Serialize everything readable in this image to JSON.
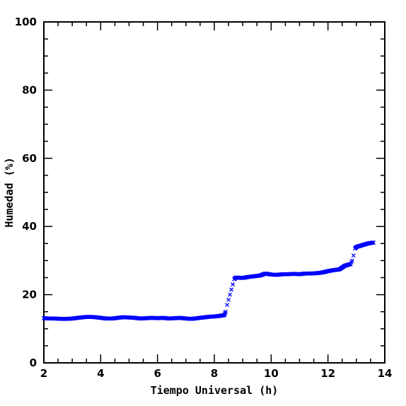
{
  "chart_data": {
    "type": "scatter",
    "xlabel": "Tiempo Universal (h)",
    "ylabel": "Humedad (%)",
    "xlim": [
      2,
      14
    ],
    "ylim": [
      0,
      100
    ],
    "x_ticks": [
      "2",
      "4",
      "6",
      "8",
      "10",
      "12",
      "14"
    ],
    "y_ticks": [
      "0",
      "20",
      "40",
      "60",
      "80",
      "100"
    ],
    "grid": false,
    "marker": "x",
    "color": "#0000ff",
    "series": [
      {
        "x": [
          2.0,
          2.2,
          2.4,
          2.6,
          2.8,
          3.0,
          3.2,
          3.4,
          3.6,
          3.8,
          4.0,
          4.2,
          4.4,
          4.6,
          4.8,
          5.0,
          5.2,
          5.4,
          5.6,
          5.8,
          6.0,
          6.2,
          6.4,
          6.6,
          6.8,
          7.0,
          7.2,
          7.4,
          7.6,
          7.8,
          8.0,
          8.2,
          8.35,
          8.4,
          8.45,
          8.5,
          8.55,
          8.6,
          8.65,
          8.7,
          8.75,
          8.8,
          9.0,
          9.2,
          9.4,
          9.6,
          9.8,
          10.0,
          10.2,
          10.4,
          10.6,
          10.8,
          11.0,
          11.2,
          11.4,
          11.6,
          11.8,
          12.0,
          12.2,
          12.4,
          12.6,
          12.8,
          12.85,
          12.9,
          12.95,
          13.0,
          13.2,
          13.4,
          13.6
        ],
        "y": [
          13.1,
          13.0,
          13.0,
          12.9,
          12.9,
          13.0,
          13.2,
          13.4,
          13.5,
          13.4,
          13.2,
          13.0,
          13.0,
          13.2,
          13.4,
          13.3,
          13.2,
          13.0,
          13.1,
          13.2,
          13.1,
          13.2,
          13.0,
          13.1,
          13.2,
          13.0,
          12.9,
          13.1,
          13.3,
          13.5,
          13.6,
          13.8,
          14.0,
          15.0,
          17.0,
          18.5,
          20.0,
          21.5,
          23.0,
          24.5,
          25.0,
          25.0,
          24.9,
          25.2,
          25.4,
          25.6,
          26.2,
          25.9,
          25.8,
          26.0,
          26.0,
          26.1,
          26.0,
          26.2,
          26.2,
          26.3,
          26.5,
          26.9,
          27.2,
          27.4,
          28.5,
          29.0,
          30.0,
          31.5,
          33.5,
          34.0,
          34.5,
          35.0,
          35.3
        ]
      }
    ]
  }
}
